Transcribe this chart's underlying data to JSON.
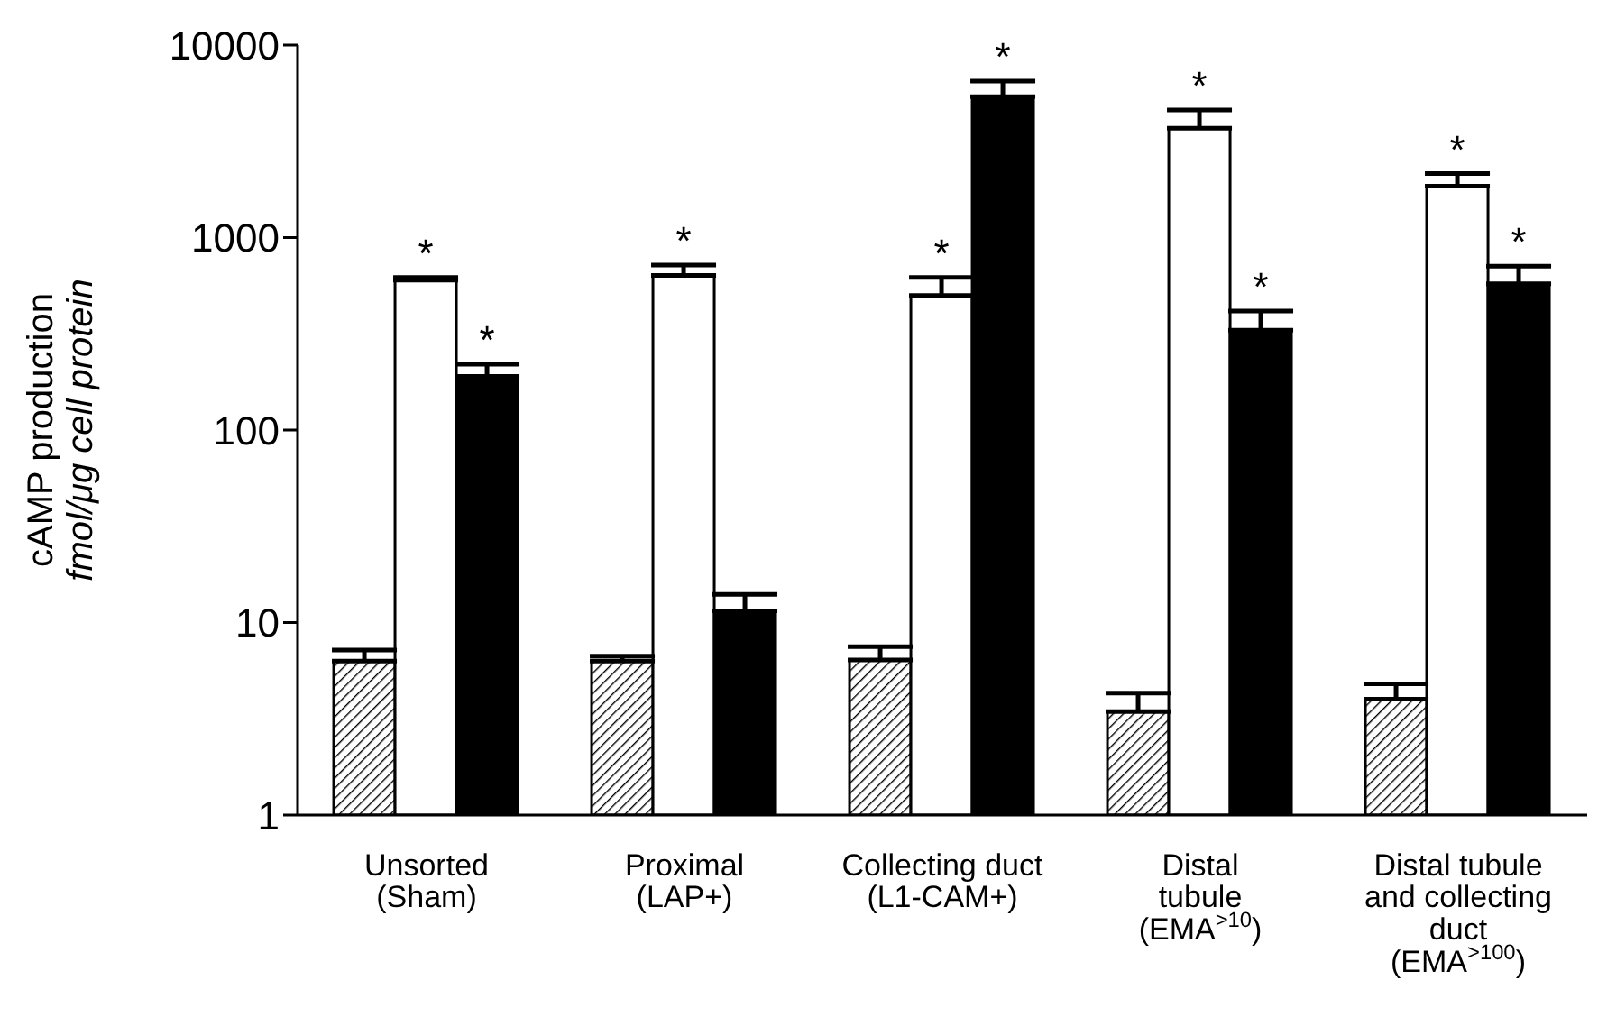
{
  "chart_data": {
    "type": "bar",
    "ylabel": "cAMP production\nfmol/μg cell protein",
    "categories": [
      "Unsorted\n(Sham)",
      "Proximal\n(LAP+)",
      "Collecting duct\n(L1-CAM+)",
      "Distal\ntubule\n(EMA$^{>10}$)",
      "Distal tubule\nand collecting\nduct\n(EMA$^{>100}$)"
    ],
    "series": [
      {
        "color": "#000000",
        "values": [
          6.3,
          6.3,
          6.4,
          3.45,
          4.0
        ],
        "errors": [
          [
            6.3,
            7.2
          ],
          [
            6.3,
            6.7
          ],
          [
            6.4,
            7.5
          ],
          [
            3.45,
            4.3
          ],
          [
            4.0,
            4.8
          ]
        ]
      },
      {
        "color": "#ffffff",
        "values": [
          600,
          635,
          500,
          3700,
          1850
        ],
        "errors": [
          [
            600,
            620
          ],
          [
            635,
            720
          ],
          [
            500,
            620
          ],
          [
            3700,
            4600
          ],
          [
            1850,
            2150
          ]
        ],
        "value_labels": [
          "*",
          "*",
          "*",
          "*",
          "*"
        ]
      },
      {
        "color": "#000000",
        "values": [
          190,
          11.5,
          5400,
          330,
          575
        ],
        "errors": [
          [
            190,
            220
          ],
          [
            11.5,
            14
          ],
          [
            5400,
            6500
          ],
          [
            330,
            415
          ],
          [
            575,
            710
          ]
        ],
        "value_labels": [
          "*",
          null,
          "*",
          "*",
          "*"
        ]
      }
    ],
    "log": true,
    "ylim": [
      1,
      10000
    ],
    "yticks": [
      1,
      10,
      100,
      1000,
      10000
    ],
    "grid": false,
    "legend": false
  }
}
